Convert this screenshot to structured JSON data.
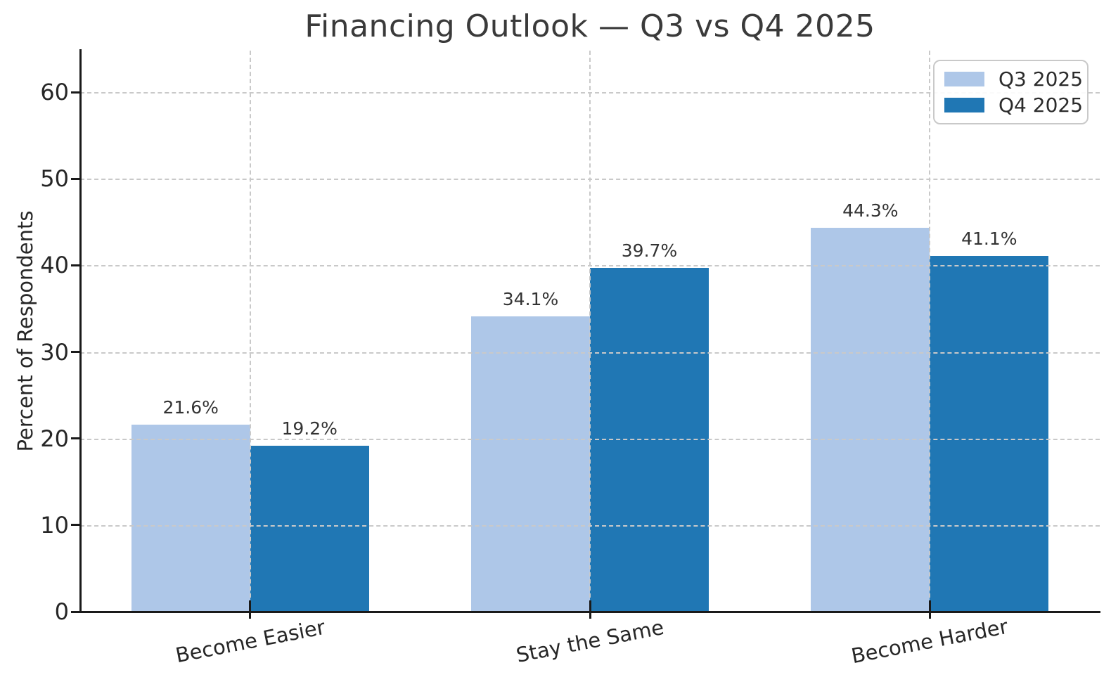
{
  "chart_data": {
    "type": "bar",
    "title": "Financing Outlook — Q3 vs Q4 2025",
    "xlabel": "",
    "ylabel": "Percent of Respondents",
    "categories": [
      "Become Easier",
      "Stay the Same",
      "Become Harder"
    ],
    "series": [
      {
        "name": "Q3 2025",
        "color": "#aec7e8",
        "values": [
          21.6,
          34.1,
          44.3
        ],
        "value_labels": [
          "21.6%",
          "34.1%",
          "44.3%"
        ]
      },
      {
        "name": "Q4 2025",
        "color": "#2077b4",
        "values": [
          19.2,
          39.7,
          41.1
        ],
        "value_labels": [
          "19.2%",
          "39.7%",
          "41.1%"
        ]
      }
    ],
    "yticks": [
      0,
      10,
      20,
      30,
      40,
      50,
      60
    ],
    "ylim": [
      0,
      64.8
    ],
    "grid": "dashed, horizontal and vertical, drawn above bars",
    "legend_position": "upper right",
    "colors": {
      "q3_bar": "#aec7e8",
      "q4_bar": "#2077b4",
      "grid": "#c9c9c9",
      "spine": "#1a1a1a",
      "title_text": "#3a3a3a",
      "tick_text": "#262626",
      "value_label_text": "#333333"
    }
  }
}
